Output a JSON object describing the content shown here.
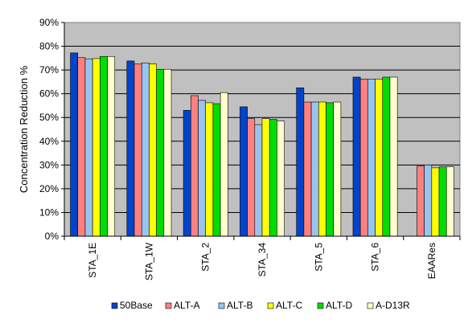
{
  "chart_data": {
    "type": "bar",
    "ylabel": "Concentration Reduction %",
    "xlabel": "",
    "ylim": [
      0,
      90
    ],
    "y_ticks": [
      "0%",
      "10%",
      "20%",
      "30%",
      "40%",
      "50%",
      "60%",
      "70%",
      "80%",
      "90%"
    ],
    "grid": "horizontal",
    "legend_position": "bottom",
    "plot_background": "#c0c0c0",
    "categories": [
      "STA_1E",
      "STA_1W",
      "STA_2",
      "STA_34",
      "STA_5",
      "STA_6",
      "EAARes"
    ],
    "series": [
      {
        "name": "50Base",
        "color": "#0044cc",
        "values": [
          77.2,
          73.8,
          53.0,
          54.5,
          62.5,
          67.0,
          null
        ]
      },
      {
        "name": "ALT-A",
        "color": "#ff8080",
        "values": [
          75.2,
          72.5,
          59.2,
          49.5,
          56.5,
          66.2,
          29.5
        ]
      },
      {
        "name": "ALT-B",
        "color": "#99c4ee",
        "values": [
          74.7,
          73.0,
          57.2,
          47.0,
          56.5,
          66.2,
          30.0
        ]
      },
      {
        "name": "ALT-C",
        "color": "#ffff00",
        "values": [
          74.8,
          72.5,
          56.2,
          49.5,
          56.5,
          66.2,
          28.8
        ]
      },
      {
        "name": "ALT-D",
        "color": "#00dd00",
        "values": [
          75.7,
          70.3,
          55.8,
          49.2,
          56.2,
          67.0,
          29.2
        ]
      },
      {
        "name": "A-D13R",
        "color": "#ffffcc",
        "values": [
          75.7,
          70.3,
          60.5,
          48.5,
          56.5,
          67.0,
          29.2
        ]
      }
    ]
  }
}
